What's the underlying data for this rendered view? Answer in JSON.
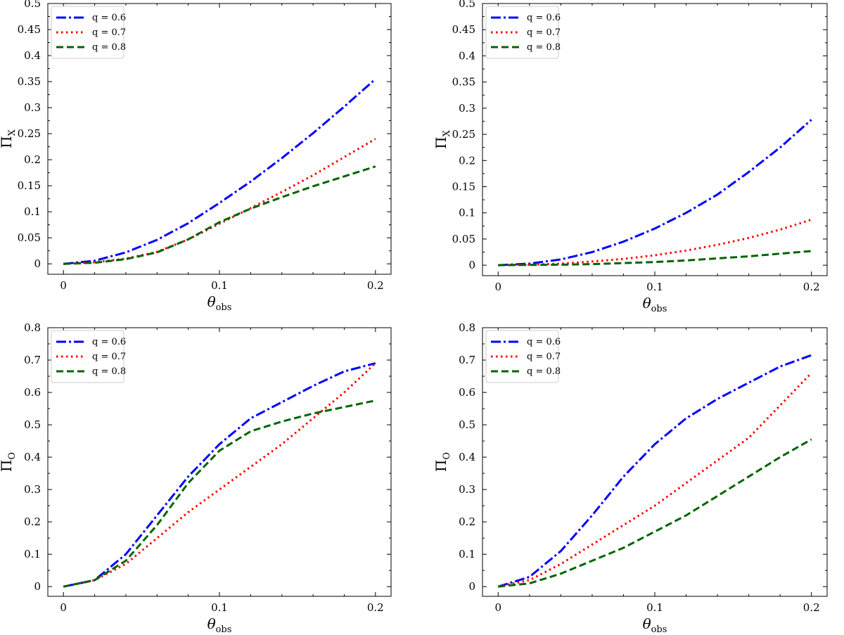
{
  "figure": {
    "legend_entries": [
      {
        "key": "q06",
        "label": "q = 0.6",
        "color": "#0000ff",
        "style": "dashdot"
      },
      {
        "key": "q07",
        "label": "q = 0.7",
        "color": "#ff0000",
        "style": "dotted"
      },
      {
        "key": "q08",
        "label": "q = 0.8",
        "color": "#006400",
        "style": "dashed"
      }
    ]
  },
  "chart_data": [
    {
      "type": "line",
      "title": "",
      "xlabel": "θ",
      "xlabel_sub": "obs",
      "ylabel": "Π",
      "ylabel_sub": "X",
      "xlim": [
        -0.01,
        0.21
      ],
      "ylim": [
        -0.02,
        0.5
      ],
      "xticks": [
        0,
        0.1,
        0.2
      ],
      "xtick_labels": [
        "0",
        "0.1",
        "0.2"
      ],
      "yticks": [
        0,
        0.05,
        0.1,
        0.15,
        0.2,
        0.25,
        0.3,
        0.35,
        0.4,
        0.45,
        0.5
      ],
      "ytick_labels": [
        "0",
        "0.05",
        "0.1",
        "0.15",
        "0.2",
        "0.25",
        "0.3",
        "0.35",
        "0.4",
        "0.45",
        "0.5"
      ],
      "legend_position": "top-left",
      "grid": false,
      "x": [
        0,
        0.02,
        0.04,
        0.06,
        0.08,
        0.1,
        0.12,
        0.14,
        0.16,
        0.18,
        0.2
      ],
      "series": [
        {
          "name": "q = 0.6",
          "values": [
            0,
            0.006,
            0.022,
            0.046,
            0.078,
            0.117,
            0.158,
            0.203,
            0.251,
            0.302,
            0.355
          ]
        },
        {
          "name": "q = 0.7",
          "values": [
            0,
            0.003,
            0.01,
            0.023,
            0.047,
            0.077,
            0.107,
            0.138,
            0.17,
            0.205,
            0.24
          ]
        },
        {
          "name": "q = 0.8",
          "values": [
            0,
            0.002,
            0.009,
            0.022,
            0.047,
            0.08,
            0.106,
            0.128,
            0.149,
            0.168,
            0.187
          ]
        }
      ]
    },
    {
      "type": "line",
      "title": "",
      "xlabel": "θ",
      "xlabel_sub": "obs",
      "ylabel": "Π",
      "ylabel_sub": "X",
      "xlim": [
        -0.01,
        0.21
      ],
      "ylim": [
        -0.02,
        0.5
      ],
      "xticks": [
        0,
        0.1,
        0.2
      ],
      "xtick_labels": [
        "0",
        "0.1",
        "0.2"
      ],
      "yticks": [
        0,
        0.05,
        0.1,
        0.15,
        0.2,
        0.25,
        0.3,
        0.35,
        0.4,
        0.45,
        0.5
      ],
      "ytick_labels": [
        "0",
        "0.05",
        "0.1",
        "0.15",
        "0.2",
        "0.25",
        "0.3",
        "0.35",
        "0.4",
        "0.45",
        "0.5"
      ],
      "legend_position": "top-left",
      "grid": false,
      "x": [
        0,
        0.02,
        0.04,
        0.06,
        0.08,
        0.1,
        0.12,
        0.14,
        0.16,
        0.18,
        0.2
      ],
      "series": [
        {
          "name": "q = 0.6",
          "values": [
            0,
            0.003,
            0.011,
            0.025,
            0.045,
            0.07,
            0.1,
            0.135,
            0.178,
            0.225,
            0.278
          ]
        },
        {
          "name": "q = 0.7",
          "values": [
            0,
            0.001,
            0.003,
            0.007,
            0.012,
            0.019,
            0.028,
            0.039,
            0.052,
            0.068,
            0.087
          ]
        },
        {
          "name": "q = 0.8",
          "values": [
            0,
            0.0005,
            0.001,
            0.002,
            0.004,
            0.006,
            0.009,
            0.013,
            0.017,
            0.022,
            0.027
          ]
        }
      ]
    },
    {
      "type": "line",
      "title": "",
      "xlabel": "θ",
      "xlabel_sub": "obs",
      "ylabel": "Π",
      "ylabel_sub": "O",
      "xlim": [
        -0.01,
        0.21
      ],
      "ylim": [
        -0.03,
        0.8
      ],
      "xticks": [
        0,
        0.1,
        0.2
      ],
      "xtick_labels": [
        "0",
        "0.1",
        "0.2"
      ],
      "yticks": [
        0,
        0.1,
        0.2,
        0.3,
        0.4,
        0.5,
        0.6,
        0.7,
        0.8
      ],
      "ytick_labels": [
        "0",
        "0.1",
        "0.2",
        "0.3",
        "0.4",
        "0.5",
        "0.6",
        "0.7",
        "0.8"
      ],
      "legend_position": "top-left",
      "grid": false,
      "x": [
        0,
        0.02,
        0.04,
        0.06,
        0.08,
        0.1,
        0.12,
        0.14,
        0.16,
        0.18,
        0.2
      ],
      "series": [
        {
          "name": "q = 0.6",
          "values": [
            0,
            0.02,
            0.1,
            0.22,
            0.34,
            0.44,
            0.52,
            0.57,
            0.62,
            0.665,
            0.69
          ]
        },
        {
          "name": "q = 0.7",
          "values": [
            0,
            0.02,
            0.07,
            0.15,
            0.23,
            0.3,
            0.37,
            0.44,
            0.52,
            0.6,
            0.69
          ]
        },
        {
          "name": "q = 0.8",
          "values": [
            0,
            0.02,
            0.08,
            0.19,
            0.32,
            0.42,
            0.48,
            0.51,
            0.535,
            0.555,
            0.575
          ]
        }
      ]
    },
    {
      "type": "line",
      "title": "",
      "xlabel": "θ",
      "xlabel_sub": "obs",
      "ylabel": "Π",
      "ylabel_sub": "O",
      "xlim": [
        -0.01,
        0.21
      ],
      "ylim": [
        -0.03,
        0.8
      ],
      "xticks": [
        0,
        0.1,
        0.2
      ],
      "xtick_labels": [
        "0",
        "0.1",
        "0.2"
      ],
      "yticks": [
        0,
        0.1,
        0.2,
        0.3,
        0.4,
        0.5,
        0.6,
        0.7,
        0.8
      ],
      "ytick_labels": [
        "0",
        "0.1",
        "0.2",
        "0.3",
        "0.4",
        "0.5",
        "0.6",
        "0.7",
        "0.8"
      ],
      "legend_position": "top-left",
      "grid": false,
      "x": [
        0,
        0.02,
        0.04,
        0.06,
        0.08,
        0.1,
        0.12,
        0.14,
        0.16,
        0.18,
        0.2
      ],
      "series": [
        {
          "name": "q = 0.6",
          "values": [
            0,
            0.03,
            0.11,
            0.22,
            0.34,
            0.44,
            0.52,
            0.58,
            0.63,
            0.68,
            0.715
          ]
        },
        {
          "name": "q = 0.7",
          "values": [
            0,
            0.02,
            0.07,
            0.13,
            0.19,
            0.25,
            0.32,
            0.39,
            0.46,
            0.56,
            0.66
          ]
        },
        {
          "name": "q = 0.8",
          "values": [
            0,
            0.01,
            0.04,
            0.08,
            0.12,
            0.17,
            0.22,
            0.28,
            0.34,
            0.4,
            0.455
          ]
        }
      ]
    }
  ]
}
